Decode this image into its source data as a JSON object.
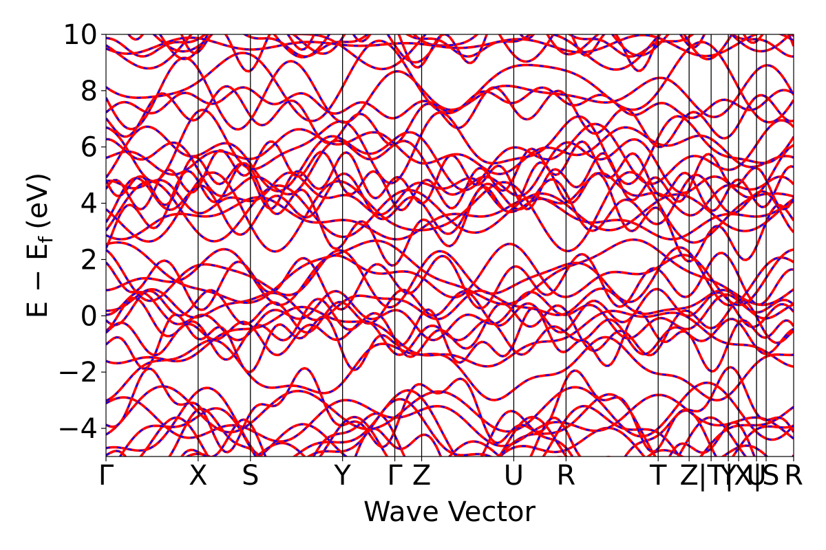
{
  "chart_data": {
    "type": "line",
    "title": "",
    "xlabel": "Wave Vector",
    "ylabel_main": "E − E",
    "ylabel_sub": "f",
    "ylabel_unit": "(eV)",
    "ylim": [
      -5,
      10
    ],
    "yticks": [
      -4,
      -2,
      0,
      2,
      4,
      6,
      8,
      10
    ],
    "ytick_labels": [
      "−4",
      "−2",
      "0",
      "2",
      "4",
      "6",
      "8",
      "10"
    ],
    "x_range": [
      0,
      1
    ],
    "kpoints": [
      {
        "label": "Γ",
        "x": 0.0
      },
      {
        "label": "X",
        "x": 0.134
      },
      {
        "label": "S",
        "x": 0.21
      },
      {
        "label": "Y",
        "x": 0.344
      },
      {
        "label": "Γ",
        "x": 0.42
      },
      {
        "label": "Z",
        "x": 0.459
      },
      {
        "label": "U",
        "x": 0.593
      },
      {
        "label": "R",
        "x": 0.669
      },
      {
        "label": "T",
        "x": 0.803
      },
      {
        "label": "Z",
        "x": 0.848
      },
      {
        "label": "|T",
        "x": 0.88
      },
      {
        "label": "Y",
        "x": 0.905
      },
      {
        "label": "|X",
        "x": 0.92
      },
      {
        "label": "U",
        "x": 0.946
      },
      {
        "label": "|S",
        "x": 0.96
      },
      {
        "label": "R",
        "x": 1.0
      }
    ],
    "grid": false,
    "colors": {
      "series_a": "#0000ff",
      "series_b": "#ff0000",
      "axes": "#000000"
    },
    "bands_note_count": 44
  }
}
